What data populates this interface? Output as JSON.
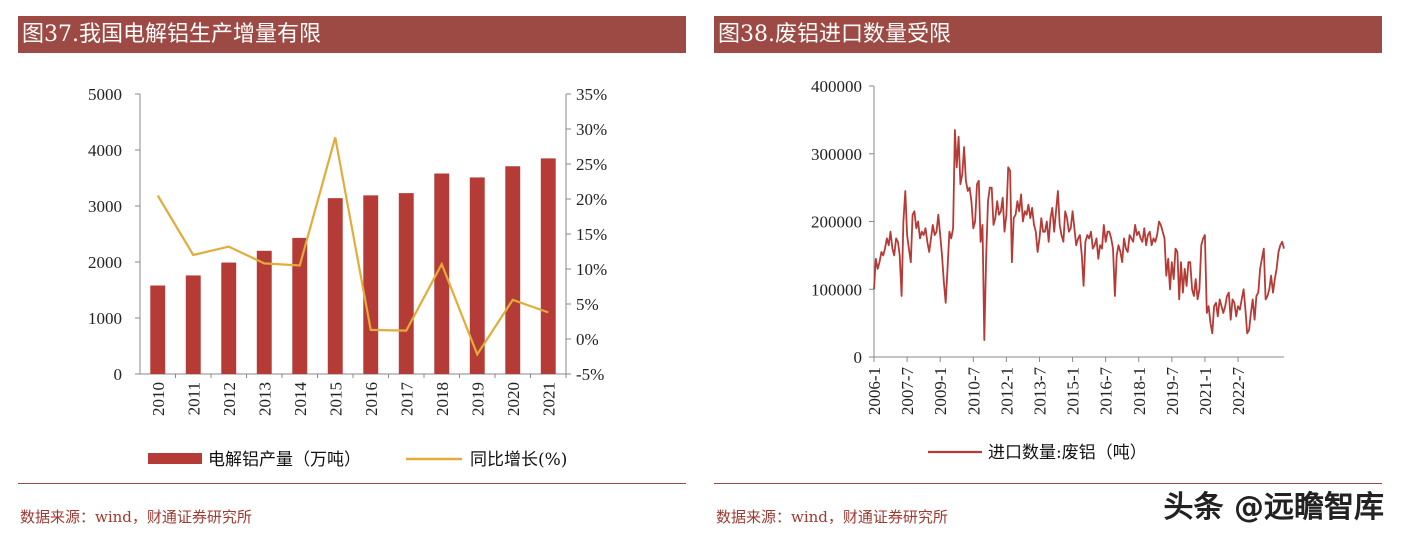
{
  "left": {
    "title": "图37.我国电解铝生产增量有限",
    "source": "数据来源：wind，财通证券研究所",
    "colors": {
      "bar": "#b53b36",
      "line": "#e1ac3a",
      "title_bg": "#9e4a44"
    },
    "chart_data": {
      "type": "bar",
      "categories": [
        "2010",
        "2011",
        "2012",
        "2013",
        "2014",
        "2015",
        "2016",
        "2017",
        "2018",
        "2019",
        "2020",
        "2021"
      ],
      "series": [
        {
          "name": "电解铝产量（万吨）",
          "type": "bar",
          "axis": "left",
          "values": [
            1580,
            1760,
            1990,
            2200,
            2430,
            3140,
            3190,
            3230,
            3580,
            3510,
            3710,
            3850
          ]
        },
        {
          "name": "同比增长(%)",
          "type": "line",
          "axis": "right",
          "values": [
            20.5,
            12.0,
            13.2,
            10.8,
            10.5,
            28.8,
            1.3,
            1.2,
            10.7,
            -2.2,
            5.6,
            3.8
          ]
        }
      ],
      "y_left": {
        "min": 0,
        "max": 5000,
        "ticks": [
          "0",
          "1000",
          "2000",
          "3000",
          "4000",
          "5000"
        ]
      },
      "y_right": {
        "min": -5,
        "max": 35,
        "ticks": [
          "-5%",
          "0%",
          "5%",
          "10%",
          "15%",
          "20%",
          "25%",
          "30%",
          "35%"
        ]
      },
      "grid": false,
      "legend_position": "bottom"
    }
  },
  "right": {
    "title": "图38.废铝进口数量受限",
    "source": "数据来源：wind，财通证券研究所",
    "watermark": "头条 @远瞻智库",
    "colors": {
      "line": "#b53b36",
      "title_bg": "#9e4a44"
    },
    "chart_data": {
      "type": "line",
      "x_ticks": [
        "2006-1",
        "2007-7",
        "2009-1",
        "2010-7",
        "2012-1",
        "2013-7",
        "2015-1",
        "2016-7",
        "2018-1",
        "2019-7",
        "2021-1",
        "2022-7"
      ],
      "y": {
        "min": 0,
        "max": 400000,
        "ticks": [
          "0",
          "100000",
          "200000",
          "300000",
          "400000"
        ]
      },
      "grid": false,
      "legend_position": "bottom",
      "series": [
        {
          "name": "进口数量:废铝（吨）",
          "start": "2006-01",
          "frequency": "monthly",
          "values": [
            100000,
            145000,
            130000,
            140000,
            155000,
            150000,
            160000,
            175000,
            165000,
            185000,
            160000,
            150000,
            175000,
            170000,
            150000,
            90000,
            200000,
            245000,
            180000,
            160000,
            140000,
            210000,
            215000,
            190000,
            200000,
            175000,
            185000,
            180000,
            190000,
            170000,
            155000,
            175000,
            195000,
            180000,
            185000,
            210000,
            180000,
            150000,
            110000,
            80000,
            130000,
            185000,
            175000,
            190000,
            335000,
            280000,
            325000,
            255000,
            270000,
            310000,
            260000,
            245000,
            250000,
            230000,
            190000,
            200000,
            255000,
            260000,
            170000,
            195000,
            25000,
            150000,
            230000,
            250000,
            250000,
            195000,
            205000,
            230000,
            210000,
            215000,
            235000,
            185000,
            210000,
            280000,
            275000,
            140000,
            205000,
            210000,
            230000,
            215000,
            240000,
            200000,
            215000,
            210000,
            225000,
            205000,
            220000,
            195000,
            185000,
            155000,
            175000,
            205000,
            185000,
            185000,
            200000,
            170000,
            205000,
            220000,
            185000,
            215000,
            245000,
            195000,
            180000,
            170000,
            215000,
            205000,
            185000,
            190000,
            215000,
            190000,
            165000,
            175000,
            180000,
            150000,
            105000,
            170000,
            180000,
            175000,
            185000,
            160000,
            165000,
            175000,
            145000,
            165000,
            160000,
            195000,
            170000,
            185000,
            185000,
            175000,
            160000,
            90000,
            150000,
            165000,
            155000,
            140000,
            175000,
            160000,
            155000,
            180000,
            175000,
            170000,
            195000,
            180000,
            185000,
            175000,
            170000,
            190000,
            165000,
            180000,
            185000,
            165000,
            175000,
            170000,
            180000,
            200000,
            195000,
            185000,
            175000,
            120000,
            145000,
            100000,
            140000,
            115000,
            160000,
            155000,
            85000,
            140000,
            95000,
            130000,
            105000,
            140000,
            140000,
            100000,
            90000,
            115000,
            85000,
            100000,
            165000,
            175000,
            180000,
            65000,
            75000,
            50000,
            35000,
            75000,
            80000,
            60000,
            85000,
            75000,
            65000,
            75000,
            90000,
            95000,
            55000,
            85000,
            80000,
            60000,
            75000,
            70000,
            85000,
            100000,
            70000,
            35000,
            40000,
            65000,
            85000,
            55000,
            90000,
            95000,
            130000,
            145000,
            160000,
            85000,
            90000,
            100000,
            120000,
            95000,
            115000,
            130000,
            155000,
            165000,
            170000,
            160000
          ]
        }
      ]
    }
  }
}
